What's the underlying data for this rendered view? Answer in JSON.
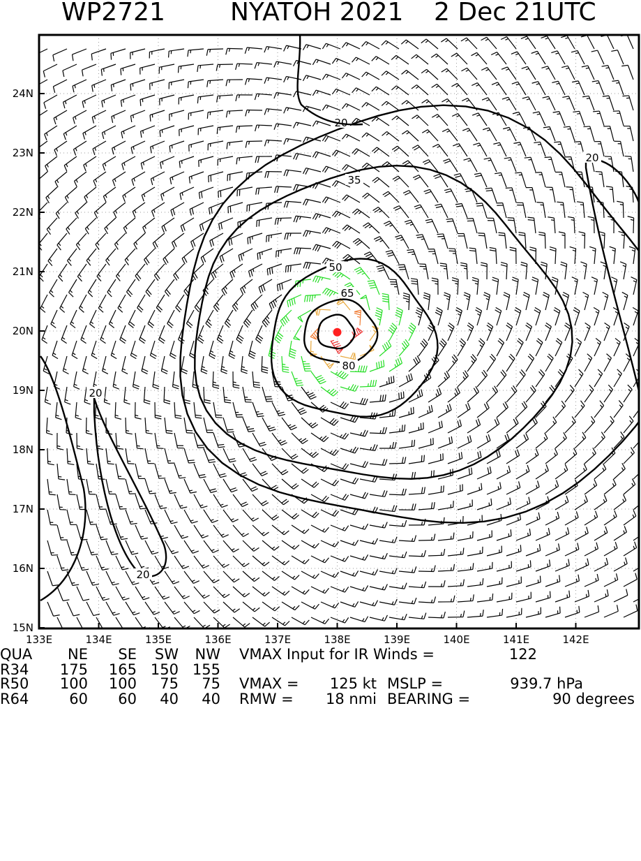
{
  "header": {
    "storm_id": "WP2721",
    "storm_name_year": "NYATOH 2021",
    "date_time": "2 Dec 21UTC"
  },
  "map": {
    "lon_range": [
      133,
      143
    ],
    "lat_range": [
      15,
      25
    ],
    "lon_ticks": [
      "133E",
      "134E",
      "135E",
      "136E",
      "137E",
      "138E",
      "139E",
      "140E",
      "141E",
      "142E"
    ],
    "lat_ticks": [
      "15N",
      "16N",
      "17N",
      "18N",
      "19N",
      "20N",
      "21N",
      "22N",
      "23N",
      "24N"
    ],
    "center": {
      "lon": 138.0,
      "lat": 19.98
    },
    "center_color": "#ff2020",
    "contours": [
      {
        "level": 20,
        "label": "20"
      },
      {
        "level": 35,
        "label": "35"
      },
      {
        "level": 50,
        "label": "50"
      },
      {
        "level": 65,
        "label": "65"
      },
      {
        "level": 80,
        "label": "80"
      }
    ],
    "barb_colors": {
      "below_34kt": "#000000",
      "34_to_49kt": "#22dd22",
      "50_to_63kt": "#e8a83c",
      "64_to_79kt": "#f07a30",
      "80kt_plus": "#ee3333"
    },
    "grid": true
  },
  "info": {
    "radii_header": {
      "qua": "QUA",
      "ne": "NE",
      "se": "SE",
      "sw": "SW",
      "nw": "NW"
    },
    "r34": {
      "label": "R34",
      "ne": "175",
      "se": "165",
      "sw": "150",
      "nw": "155"
    },
    "r50": {
      "label": "R50",
      "ne": "100",
      "se": "100",
      "sw": "75",
      "nw": "75"
    },
    "r64": {
      "label": "R64",
      "ne": "60",
      "se": "60",
      "sw": "40",
      "nw": "40"
    },
    "vmax_input_text": "VMAX Input for IR Winds =",
    "vmax_input_value": "122",
    "vmax_text": "VMAX =",
    "vmax_value": "125 kt",
    "mslp_text": "MSLP =",
    "mslp_value": "939.7 hPa",
    "rmw_text": "RMW =",
    "rmw_value": "18 nmi",
    "bearing_text": "BEARING =",
    "bearing_value": "90 degrees"
  }
}
